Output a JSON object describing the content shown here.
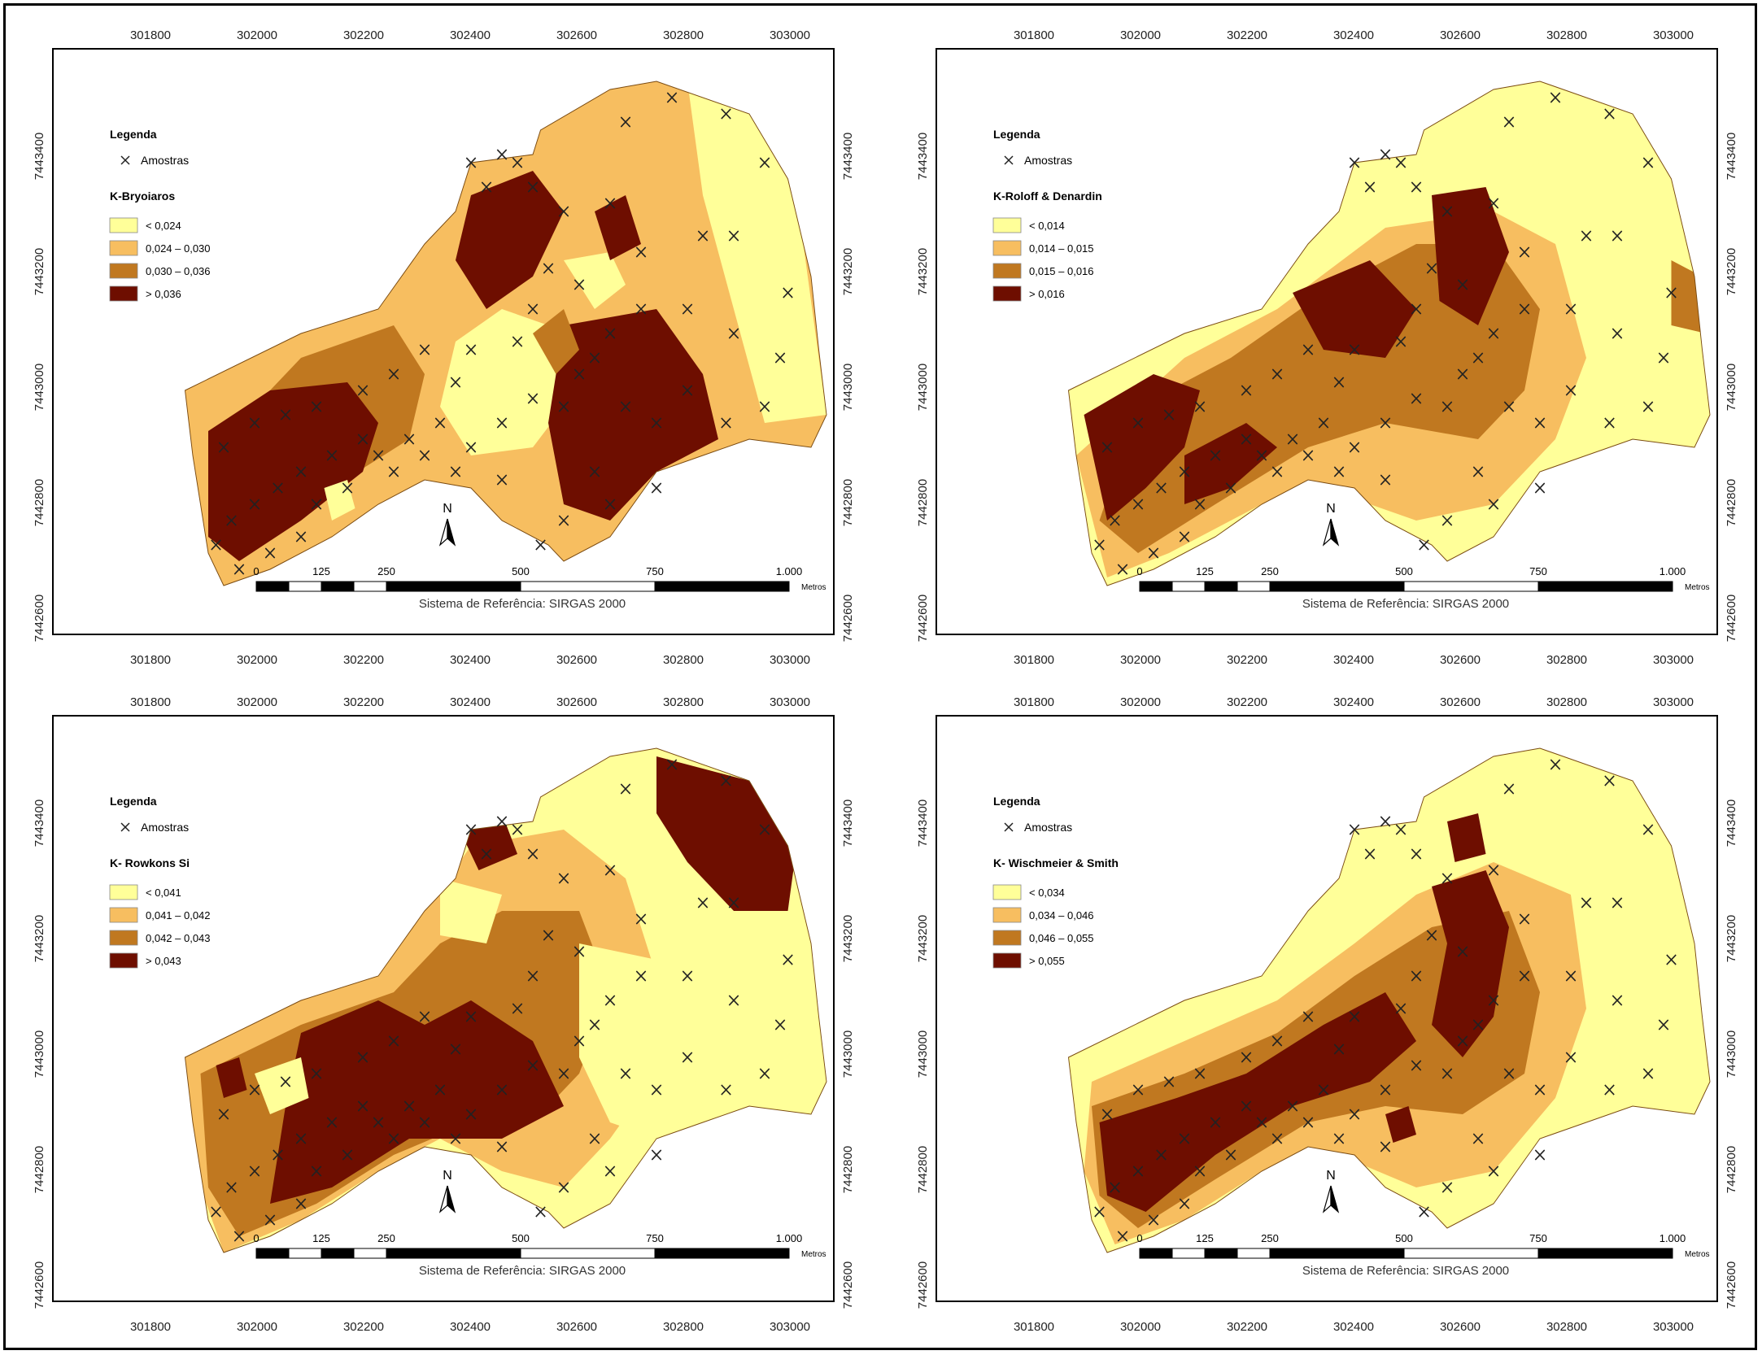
{
  "colors": {
    "c1": "#FFFF99",
    "c2": "#F7BE60",
    "c3": "#C07820",
    "c4": "#6E0E00",
    "background": "#FFFFFF",
    "frame": "#000000"
  },
  "axes": {
    "x_ticks": [
      "301800",
      "302000",
      "302200",
      "302400",
      "302600",
      "302800",
      "303000"
    ],
    "y_ticks": [
      "7442600",
      "7442800",
      "7443000",
      "7443200",
      "7443400"
    ]
  },
  "scale_bar": {
    "labels": [
      "0",
      "125",
      "250",
      "500",
      "750",
      "1.000"
    ],
    "unit": "Metros"
  },
  "reference_system": "Sistema de Referência: SIRGAS 2000",
  "north_label": "N",
  "maps": [
    {
      "legend_title": "Legenda",
      "samples_label": "Amostras",
      "variable": "K-Bryoiaros",
      "classes": [
        "< 0,024",
        "0,024 – 0,030",
        "0,030 – 0,036",
        "> 0,036"
      ]
    },
    {
      "legend_title": "Legenda",
      "samples_label": "Amostras",
      "variable": "K-Roloff & Denardin",
      "classes": [
        "< 0,014",
        "0,014 – 0,015",
        "0,015 – 0,016",
        "> 0,016"
      ]
    },
    {
      "legend_title": "Legenda",
      "samples_label": "Amostras",
      "variable": "K- Rowkons Si",
      "classes": [
        "< 0,041",
        "0,041 – 0,042",
        "0,042 – 0,043",
        "> 0,043"
      ]
    },
    {
      "legend_title": "Legenda",
      "samples_label": "Amostras",
      "variable": "K- Wischmeier & Smith",
      "classes": [
        "< 0,034",
        "0,034 – 0,046",
        "0,046 – 0,055",
        "> 0,055"
      ]
    }
  ]
}
